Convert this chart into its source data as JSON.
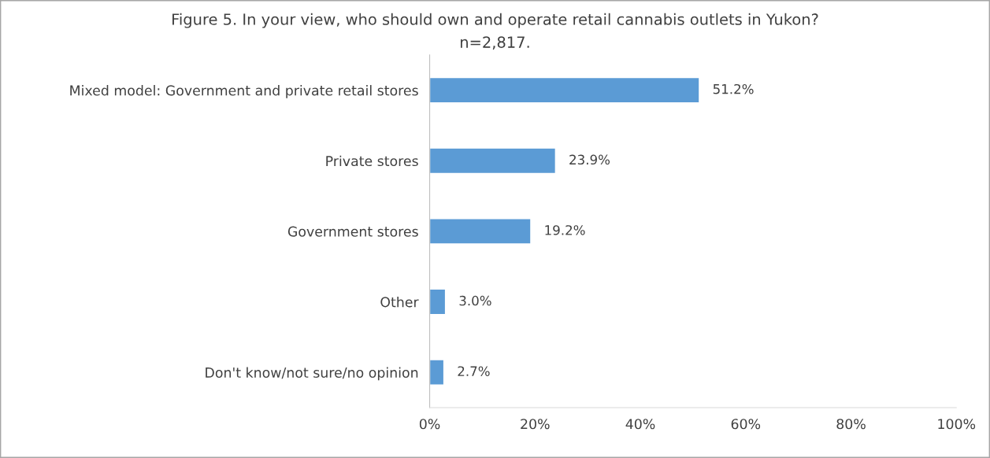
{
  "chart_data": {
    "type": "bar",
    "orientation": "horizontal",
    "title": "Figure 5. In your view, who should own and operate retail cannabis outlets in Yukon?",
    "subtitle": "n=2,817.",
    "categories": [
      "Mixed model: Government and private retail stores",
      "Private stores",
      "Government stores",
      "Other",
      "Don't know/not sure/no opinion"
    ],
    "values": [
      51.2,
      23.9,
      19.2,
      3.0,
      2.7
    ],
    "value_labels": [
      "51.2%",
      "23.9%",
      "19.2%",
      "3.0%",
      "2.7%"
    ],
    "color": "#5b9bd5",
    "xlim": [
      0,
      100
    ],
    "xticks": [
      {
        "value": 0,
        "label": "0%"
      },
      {
        "value": 20,
        "label": "20%"
      },
      {
        "value": 40,
        "label": "40%"
      },
      {
        "value": 60,
        "label": "60%"
      },
      {
        "value": 80,
        "label": "80%"
      },
      {
        "value": 100,
        "label": "100%"
      }
    ],
    "grid": false,
    "legend": false
  }
}
